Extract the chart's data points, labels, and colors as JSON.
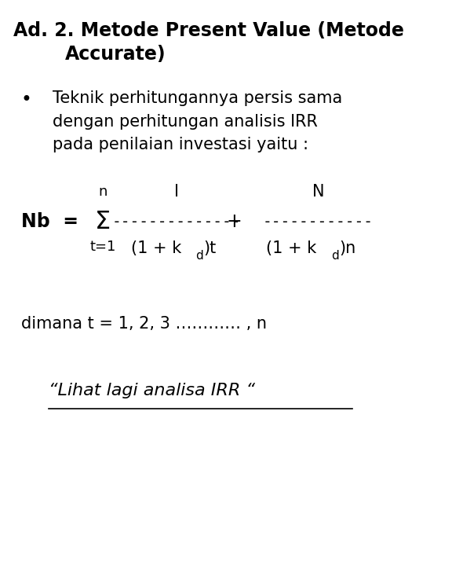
{
  "title_line1": "Ad. 2. Metode Present Value (Metode",
  "title_line2": "Accurate)",
  "bullet_text_line1": "Teknik perhitungannya persis sama",
  "bullet_text_line2": "dengan perhitungan analisis IRR",
  "bullet_text_line3": "pada penilaian investasi yaitu :",
  "dimana_text": "dimana t = 1, 2, 3 ………… , n",
  "footer_text": "“Lihat lagi analisa IRR “",
  "bg_color": "#ffffff",
  "text_color": "#000000",
  "title_fontsize": 17,
  "body_fontsize": 15,
  "formula_fontsize": 15,
  "footer_fontsize": 16
}
